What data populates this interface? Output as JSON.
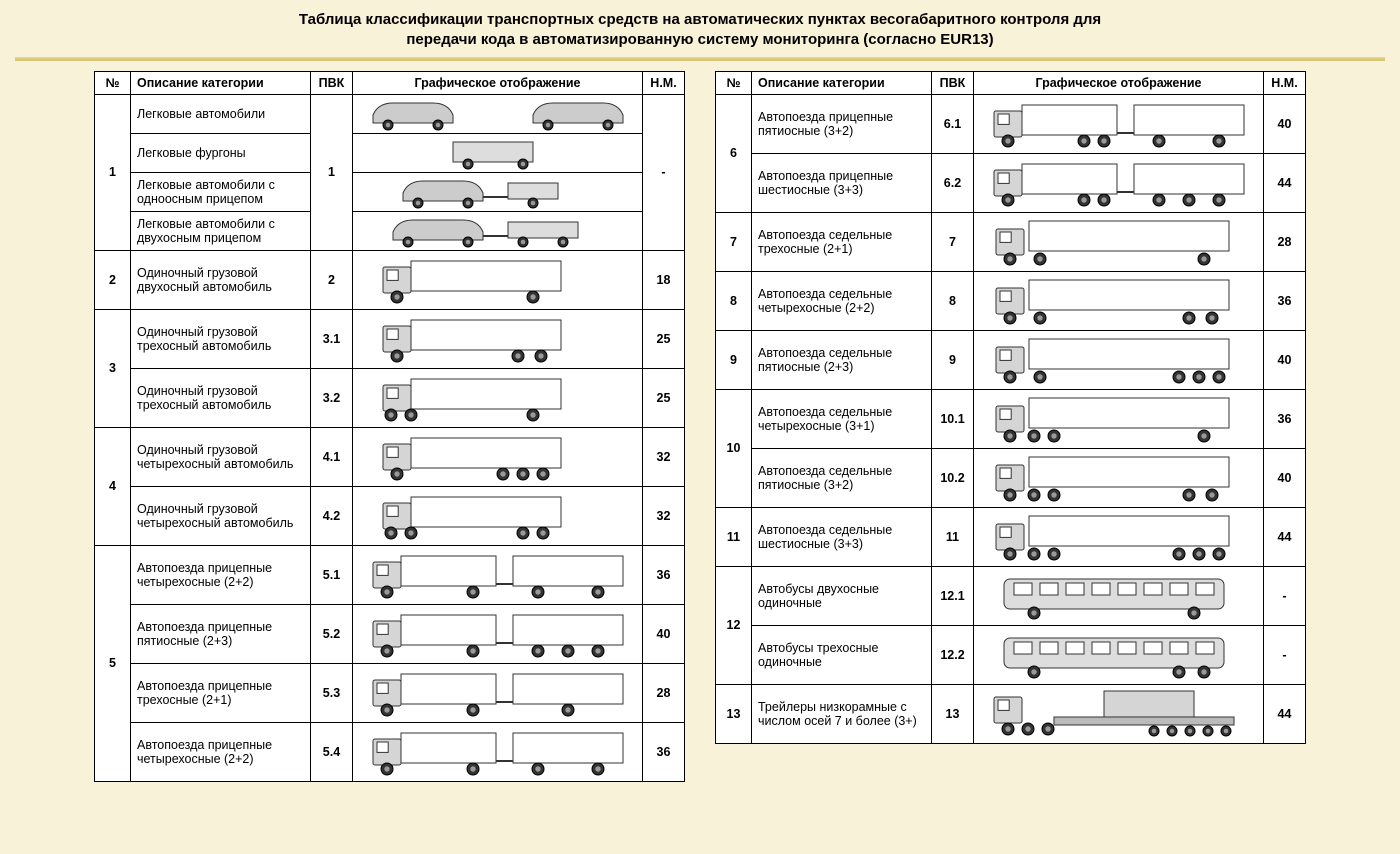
{
  "title_line1": "Таблица классификации транспортных средств на автоматических пунктах весогабаритного контроля для",
  "title_line2": "передачи кода в автоматизированную систему мониторинга (согласно EUR13)",
  "headers": {
    "num": "№",
    "desc": "Описание категории",
    "pvk": "ПВК",
    "img": "Графическое отображение",
    "nm": "Н.М."
  },
  "left": [
    {
      "num": "1",
      "subs": [
        {
          "desc": "Легковые автомобили",
          "pvk": null,
          "nm": null,
          "v": "cars"
        },
        {
          "desc": "Легковые фургоны",
          "pvk": null,
          "nm": null,
          "v": "vans"
        },
        {
          "desc": "Легковые автомобили с одноосным прицепом",
          "pvk": null,
          "nm": null,
          "v": "car_trailer1"
        },
        {
          "desc": "Легковые автомобили с двухосным прицепом",
          "pvk": null,
          "nm": null,
          "v": "car_trailer2"
        }
      ],
      "groupPvk": "1",
      "groupNm": "-"
    },
    {
      "num": "2",
      "subs": [
        {
          "desc": "Одиночный грузовой двухосный автомобиль",
          "pvk": "2",
          "nm": "18",
          "v": "truck2"
        }
      ]
    },
    {
      "num": "3",
      "subs": [
        {
          "desc": "Одиночный грузовой трехосный автомобиль",
          "pvk": "3.1",
          "nm": "25",
          "v": "truck3a"
        },
        {
          "desc": "Одиночный грузовой трехосный автомобиль",
          "pvk": "3.2",
          "nm": "25",
          "v": "truck3b"
        }
      ]
    },
    {
      "num": "4",
      "subs": [
        {
          "desc": "Одиночный грузовой четырехосный автомобиль",
          "pvk": "4.1",
          "nm": "32",
          "v": "truck4a"
        },
        {
          "desc": "Одиночный грузовой четырехосный автомобиль",
          "pvk": "4.2",
          "nm": "32",
          "v": "truck4b"
        }
      ]
    },
    {
      "num": "5",
      "subs": [
        {
          "desc": "Автопоезда прицепные четырехосные (2+2)",
          "pvk": "5.1",
          "nm": "36",
          "v": "train22a"
        },
        {
          "desc": "Автопоезда прицепные пятиосные (2+3)",
          "pvk": "5.2",
          "nm": "40",
          "v": "train23"
        },
        {
          "desc": "Автопоезда прицепные трехосные (2+1)",
          "pvk": "5.3",
          "nm": "28",
          "v": "train21"
        },
        {
          "desc": "Автопоезда прицепные четырехосные (2+2)",
          "pvk": "5.4",
          "nm": "36",
          "v": "train22b"
        }
      ]
    }
  ],
  "right": [
    {
      "num": "6",
      "subs": [
        {
          "desc": "Автопоезда прицепные пятиосные (3+2)",
          "pvk": "6.1",
          "nm": "40",
          "v": "train32"
        },
        {
          "desc": "Автопоезда прицепные шестиосные (3+3)",
          "pvk": "6.2",
          "nm": "44",
          "v": "train33"
        }
      ]
    },
    {
      "num": "7",
      "subs": [
        {
          "desc": "Автопоезда седельные трехосные (2+1)",
          "pvk": "7",
          "nm": "28",
          "v": "semi21"
        }
      ]
    },
    {
      "num": "8",
      "subs": [
        {
          "desc": "Автопоезда седельные четырехосные (2+2)",
          "pvk": "8",
          "nm": "36",
          "v": "semi22"
        }
      ]
    },
    {
      "num": "9",
      "subs": [
        {
          "desc": "Автопоезда седельные пятиосные (2+3)",
          "pvk": "9",
          "nm": "40",
          "v": "semi23"
        }
      ]
    },
    {
      "num": "10",
      "subs": [
        {
          "desc": "Автопоезда седельные четырехосные (3+1)",
          "pvk": "10.1",
          "nm": "36",
          "v": "semi31"
        },
        {
          "desc": "Автопоезда седельные пятиосные (3+2)",
          "pvk": "10.2",
          "nm": "40",
          "v": "semi32"
        }
      ]
    },
    {
      "num": "11",
      "subs": [
        {
          "desc": "Автопоезда седельные шестиосные (3+3)",
          "pvk": "11",
          "nm": "44",
          "v": "semi33"
        }
      ]
    },
    {
      "num": "12",
      "subs": [
        {
          "desc": "Автобусы двухосные одиночные",
          "pvk": "12.1",
          "nm": "-",
          "v": "bus2"
        },
        {
          "desc": "Автобусы трехосные одиночные",
          "pvk": "12.2",
          "nm": "-",
          "v": "bus3"
        }
      ]
    },
    {
      "num": "13",
      "subs": [
        {
          "desc": "Трейлеры низкорамные с числом осей 7 и более (3+)",
          "pvk": "13",
          "nm": "44",
          "v": "lowbed"
        }
      ]
    }
  ],
  "colors": {
    "bg": "#f8f2d8",
    "border": "#000000",
    "stroke": "#404040",
    "fill": "#ffffff",
    "fillGray": "#d0d0d0",
    "wheel": "#333333"
  }
}
